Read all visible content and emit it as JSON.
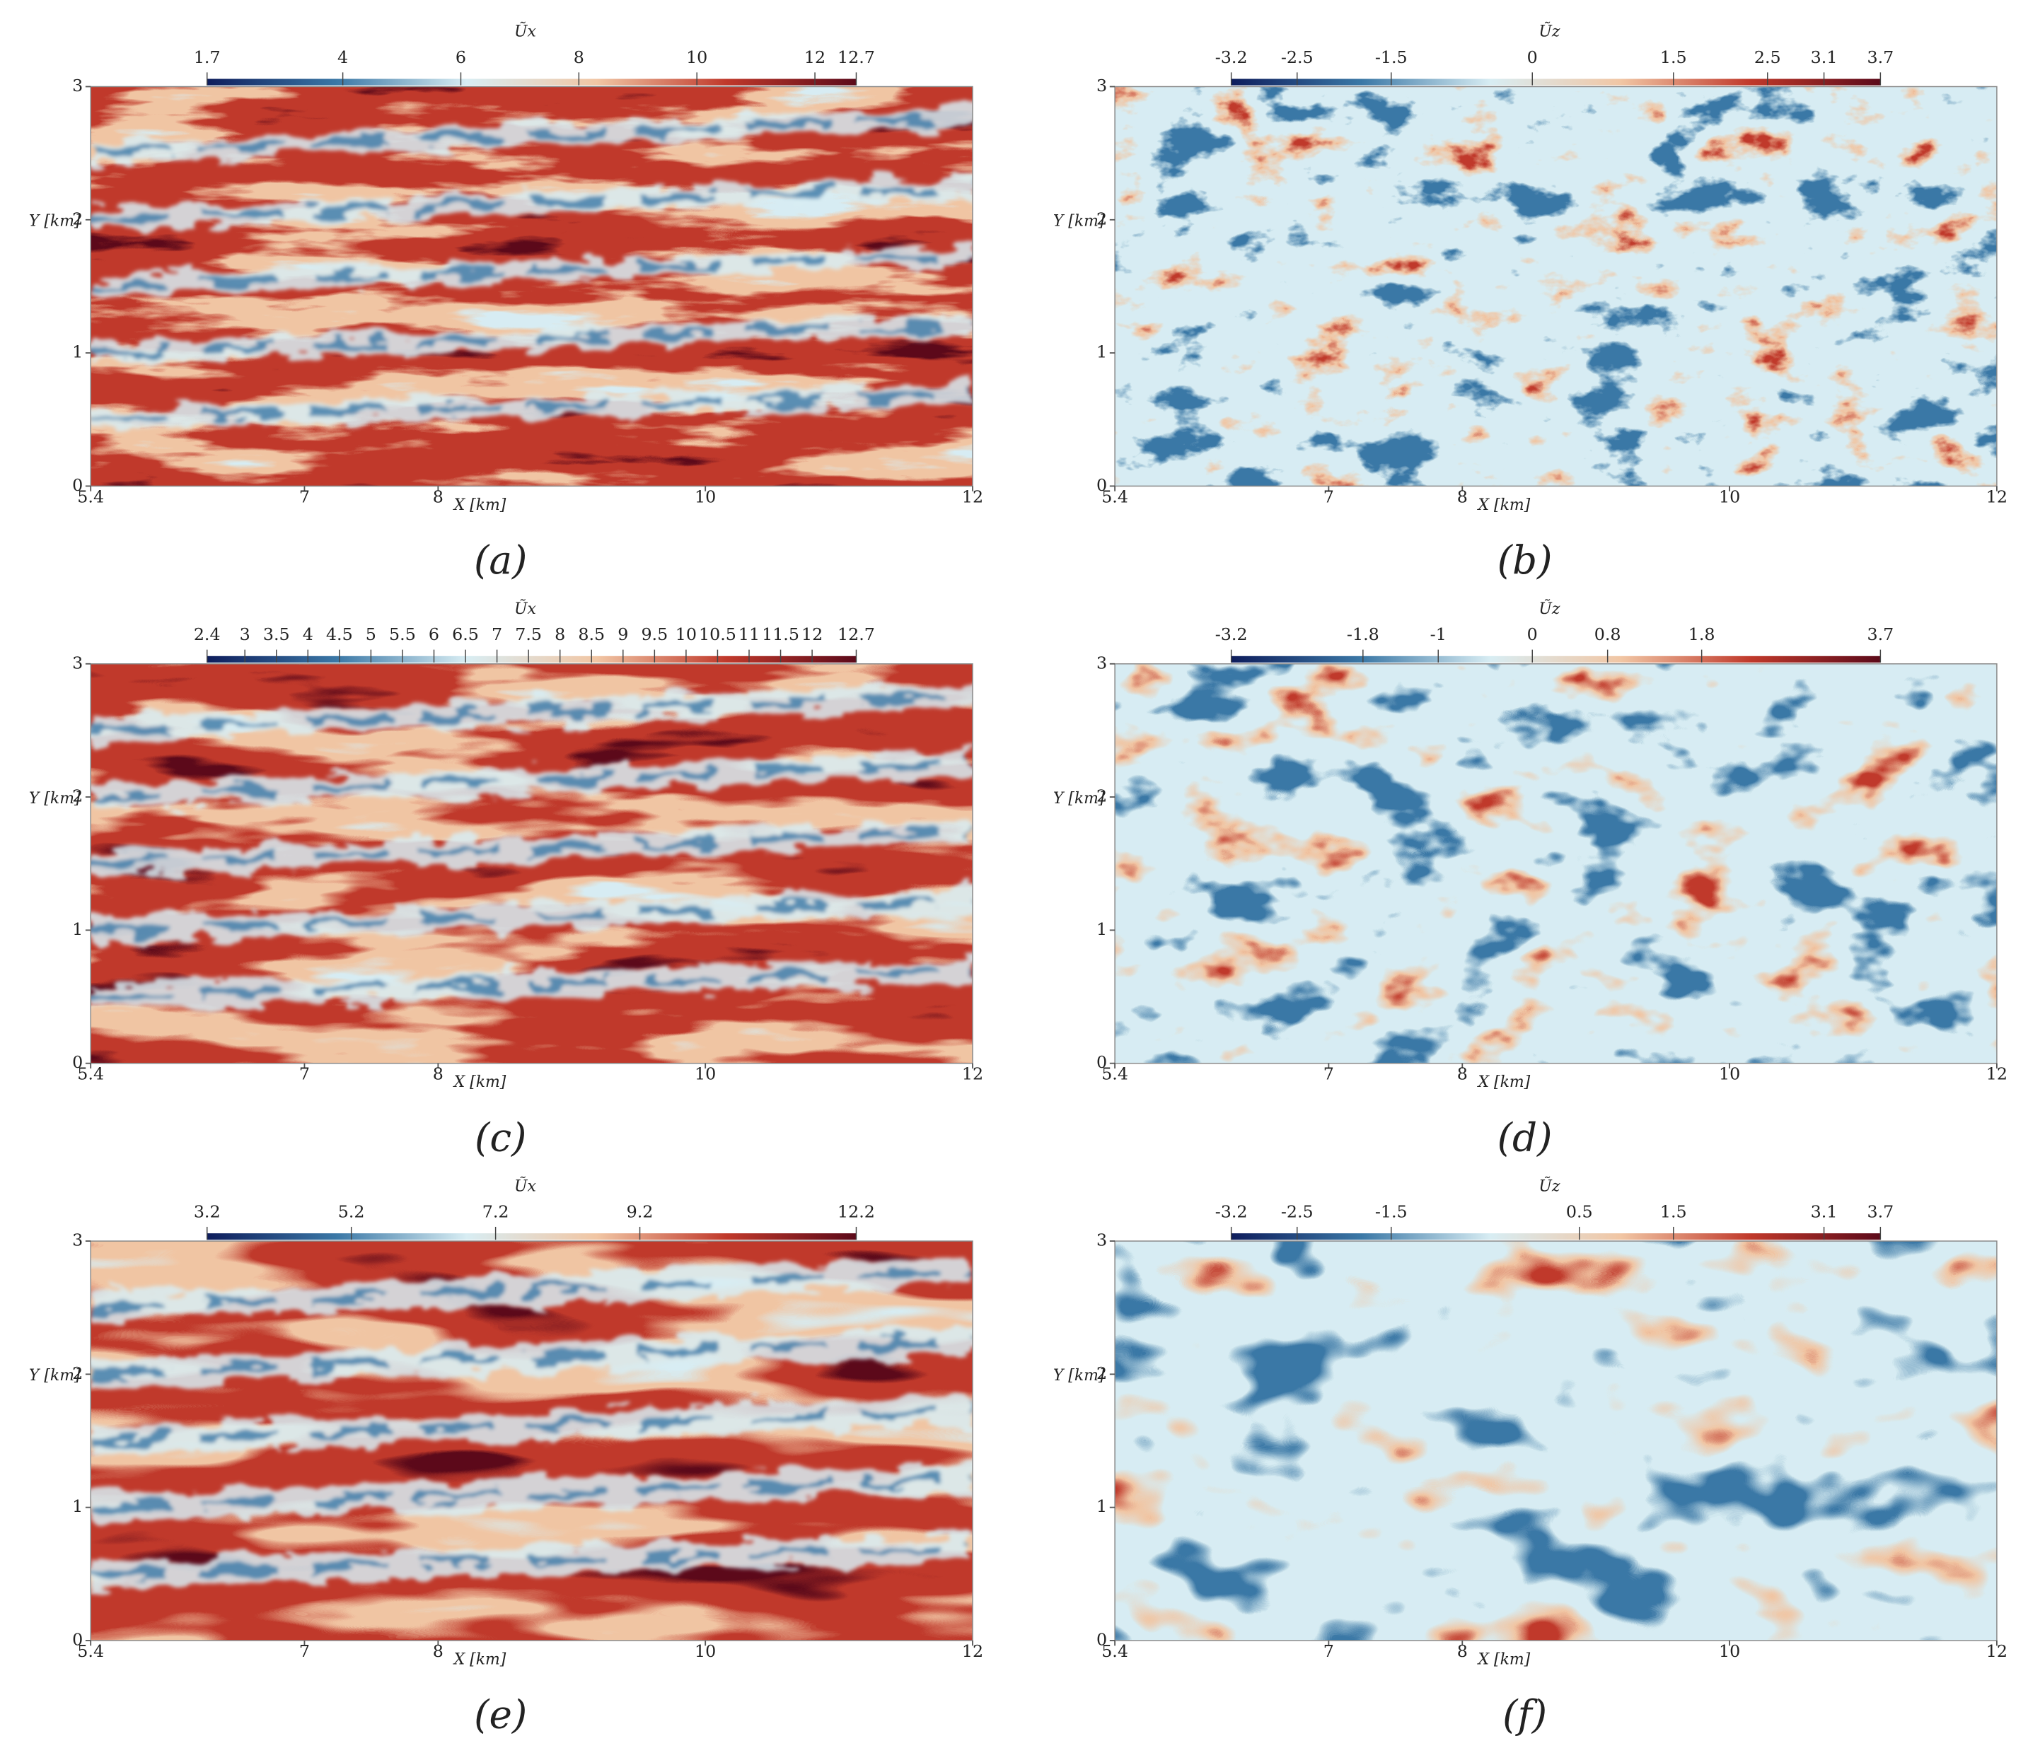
{
  "chart_data": [
    {
      "type": "heatmap",
      "panel_label": "(a)",
      "colorbar_label": "Ũx",
      "xlabel": "X [km]",
      "ylabel": "Y [km]",
      "xlim": [
        5.4,
        12
      ],
      "xticks": [
        5.4,
        7,
        8,
        10,
        12
      ],
      "ylim": [
        0,
        3
      ],
      "yticks": [
        0,
        1,
        2,
        3
      ],
      "clim": [
        1.7,
        12.7
      ],
      "cticks": [
        1.7,
        4,
        6,
        8,
        10,
        12,
        12.7
      ],
      "colormap": [
        "#0e1d5c",
        "#3b78a6",
        "#d8edf3",
        "#f1c6a4",
        "#c0392b",
        "#5c0a1a"
      ]
    },
    {
      "type": "heatmap",
      "panel_label": "(b)",
      "colorbar_label": "Ũz",
      "xlabel": "X [km]",
      "ylabel": "Y [km]",
      "xlim": [
        5.4,
        12
      ],
      "xticks": [
        5.4,
        7,
        8,
        10,
        12
      ],
      "ylim": [
        0,
        3
      ],
      "yticks": [
        0,
        1,
        2,
        3
      ],
      "clim": [
        -3.2,
        3.7
      ],
      "cticks": [
        -3.2,
        -2.5,
        -1.5,
        0,
        1.5,
        2.5,
        3.1,
        3.7
      ],
      "colormap": [
        "#0e1d5c",
        "#3b78a6",
        "#d8edf3",
        "#f1c6a4",
        "#c0392b",
        "#5c0a1a"
      ]
    },
    {
      "type": "heatmap",
      "panel_label": "(c)",
      "colorbar_label": "Ũx",
      "xlabel": "X [km]",
      "ylabel": "Y [km]",
      "xlim": [
        5.4,
        12
      ],
      "xticks": [
        5.4,
        7,
        8,
        10,
        12
      ],
      "ylim": [
        0,
        3
      ],
      "yticks": [
        0,
        1,
        2,
        3
      ],
      "clim": [
        2.4,
        12.7
      ],
      "cticks": [
        2.4,
        3,
        3.5,
        4,
        4.5,
        5,
        5.5,
        6,
        6.5,
        7,
        7.5,
        8,
        8.5,
        9,
        9.5,
        10,
        10.5,
        11,
        11.5,
        12,
        12.7
      ],
      "colormap": [
        "#0e1d5c",
        "#3b78a6",
        "#d8edf3",
        "#f1c6a4",
        "#c0392b",
        "#5c0a1a"
      ]
    },
    {
      "type": "heatmap",
      "panel_label": "(d)",
      "colorbar_label": "Ũz",
      "xlabel": "X [km]",
      "ylabel": "Y [km]",
      "xlim": [
        5.4,
        12
      ],
      "xticks": [
        5.4,
        7,
        8,
        10,
        12
      ],
      "ylim": [
        0,
        3
      ],
      "yticks": [
        0,
        1,
        2,
        3
      ],
      "clim": [
        -3.2,
        3.7
      ],
      "cticks": [
        -3.2,
        -1.8,
        -1,
        0,
        0.8,
        1.8,
        3.7
      ],
      "colormap": [
        "#0e1d5c",
        "#3b78a6",
        "#d8edf3",
        "#f1c6a4",
        "#c0392b",
        "#5c0a1a"
      ]
    },
    {
      "type": "heatmap",
      "panel_label": "(e)",
      "colorbar_label": "Ũx",
      "xlabel": "X [km]",
      "ylabel": "Y [km]",
      "xlim": [
        5.4,
        12
      ],
      "xticks": [
        5.4,
        7,
        8,
        10,
        12
      ],
      "ylim": [
        0,
        3
      ],
      "yticks": [
        0,
        1,
        2,
        3
      ],
      "clim": [
        3.2,
        12.2
      ],
      "cticks": [
        3.2,
        5.2,
        7.2,
        9.2,
        12.2
      ],
      "colormap": [
        "#0e1d5c",
        "#3b78a6",
        "#d8edf3",
        "#f1c6a4",
        "#c0392b",
        "#5c0a1a"
      ]
    },
    {
      "type": "heatmap",
      "panel_label": "(f)",
      "colorbar_label": "Ũz",
      "xlabel": "X [km]",
      "ylabel": "Y [km]",
      "xlim": [
        5.4,
        12
      ],
      "xticks": [
        5.4,
        7,
        8,
        10,
        12
      ],
      "ylim": [
        0,
        3
      ],
      "yticks": [
        0,
        1,
        2,
        3
      ],
      "clim": [
        -3.2,
        3.7
      ],
      "cticks": [
        -3.2,
        -2.5,
        -1.5,
        0.5,
        1.5,
        3.1,
        3.7
      ],
      "colormap": [
        "#0e1d5c",
        "#3b78a6",
        "#d8edf3",
        "#f1c6a4",
        "#c0392b",
        "#5c0a1a"
      ]
    }
  ]
}
